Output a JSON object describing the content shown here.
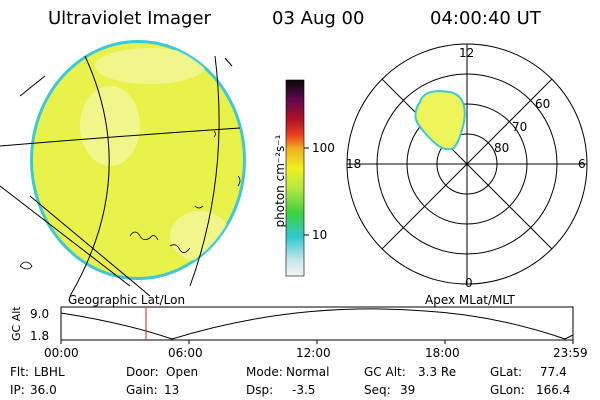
{
  "header": {
    "title": "Ultraviolet Imager",
    "date": "03 Aug 00",
    "time": "04:00:40 UT"
  },
  "colorbar": {
    "unit_label": "photon cm⁻²s⁻¹",
    "ticks": [
      "100",
      "10"
    ]
  },
  "panels": {
    "left_label": "Geographic Lat/Lon",
    "right_label": "Apex MLat/MLT"
  },
  "polar": {
    "mlt_labels": [
      "12",
      "18",
      "6",
      "0"
    ],
    "lat_labels": [
      "60",
      "70",
      "80"
    ]
  },
  "timeline": {
    "ylabel": "GC Alt",
    "ticks_y": [
      "9.0",
      "1.8"
    ],
    "ticks_x": [
      "00:00",
      "06:00",
      "12:00",
      "18:00",
      "23:59"
    ]
  },
  "info": {
    "row1": [
      {
        "label": "Flt:",
        "value": "LBHL"
      },
      {
        "label": "Door:",
        "value": "Open"
      },
      {
        "label": "Mode:",
        "value": "Normal"
      },
      {
        "label": "GC Alt:",
        "value": "3.3 Re"
      },
      {
        "label": "GLat:",
        "value": "77.4"
      }
    ],
    "row2": [
      {
        "label": "IP:",
        "value": "36.0"
      },
      {
        "label": "Gain:",
        "value": "13"
      },
      {
        "label": "Dsp:",
        "value": "-3.5"
      },
      {
        "label": "Seq:",
        "value": "39"
      },
      {
        "label": "GLon:",
        "value": "166.4"
      }
    ]
  },
  "colors": {
    "disk_fill": "#e8f24a",
    "disk_edge": "#3cc8d8",
    "oval_fill": "#eef55a",
    "marker": "#cc2222"
  }
}
